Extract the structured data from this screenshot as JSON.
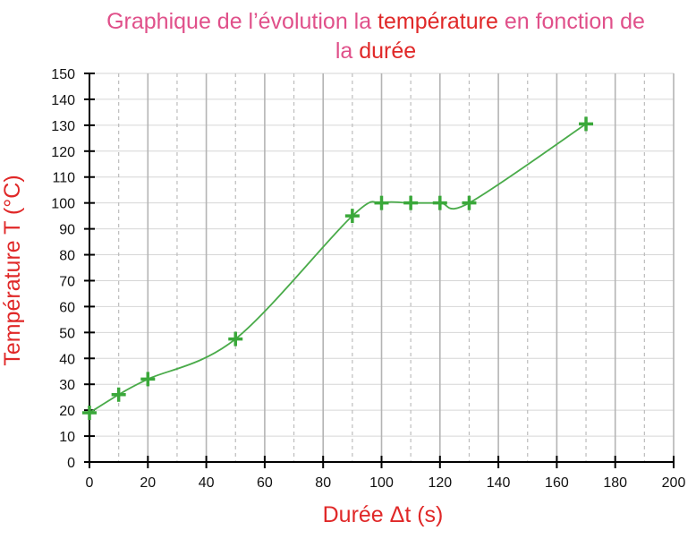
{
  "title": {
    "line1_a": "Graphique de l’évolution la ",
    "line1_b": "température",
    "line1_c": " en fonction de",
    "line2_a": "la ",
    "line2_b": "durée"
  },
  "colors": {
    "title": "#e0508a",
    "highlight": "#e02828",
    "series": "#3aa83a",
    "grid": "#c8c8c8"
  },
  "chart_data": {
    "type": "line",
    "title": "Graphique de l’évolution la température en fonction de la durée",
    "xlabel": "Durée  Δt (s)",
    "ylabel": "Température  T (°C)",
    "xlim": [
      0,
      200
    ],
    "ylim": [
      0,
      150
    ],
    "x_ticks": [
      0,
      20,
      40,
      60,
      80,
      100,
      120,
      140,
      160,
      180,
      200
    ],
    "y_ticks": [
      0,
      10,
      20,
      30,
      40,
      50,
      60,
      70,
      80,
      90,
      100,
      110,
      120,
      130,
      140,
      150
    ],
    "grid": true,
    "marker": "+",
    "smoothed": true,
    "series": [
      {
        "name": "Température",
        "x": [
          0,
          10,
          20,
          50,
          90,
          100,
          110,
          120,
          130,
          170
        ],
        "y": [
          19,
          26,
          32,
          47.5,
          95,
          100,
          100,
          100,
          100,
          130.5
        ]
      }
    ]
  }
}
